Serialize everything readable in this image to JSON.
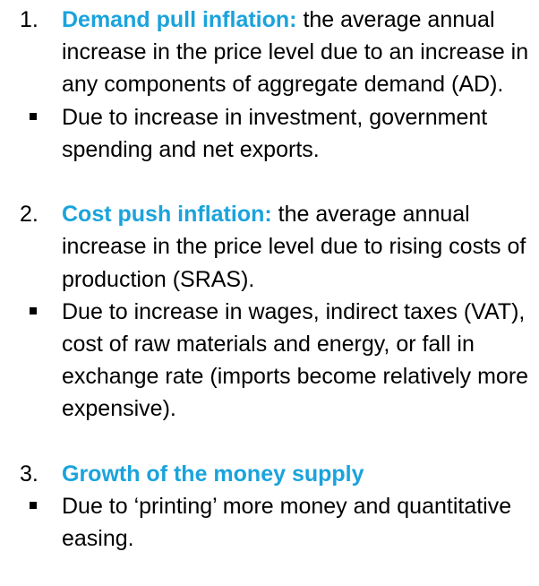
{
  "items": [
    {
      "number": "1.",
      "term": "Demand pull inflation:",
      "definition": " the average annual increase in the price level due to an increase in any components of aggregate demand (AD).",
      "bullet": "Due to increase in investment, government spending and net exports."
    },
    {
      "number": "2.",
      "term": "Cost push inflation:",
      "definition": " the average annual increase in the price level due to rising costs of production (SRAS).",
      "bullet": "Due to increase in wages, indirect taxes (VAT), cost of raw materials and energy, or fall in exchange rate (imports become relatively more expensive)."
    },
    {
      "number": "3.",
      "term": "Growth of the money supply",
      "definition": "",
      "bullet": "Due to ‘printing’ more money and quantitative easing."
    }
  ],
  "colors": {
    "term": "#1aa3dc",
    "text": "#000000"
  }
}
